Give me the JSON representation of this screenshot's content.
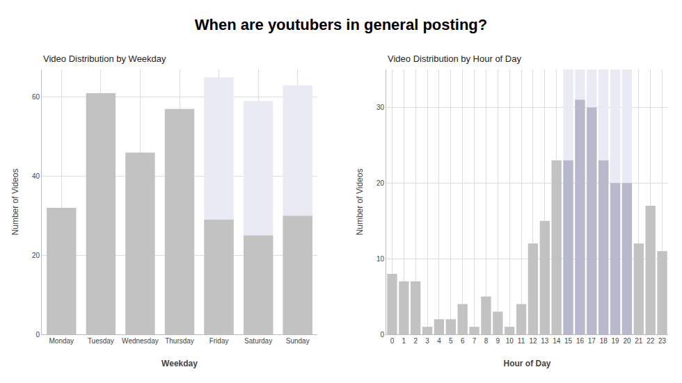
{
  "title": "When are youtubers in general posting?",
  "chart_data": [
    {
      "type": "bar",
      "title": "Video Distribution by Weekday",
      "xlabel": "Weekday",
      "ylabel": "Number of Videos",
      "categories": [
        "Monday",
        "Tuesday",
        "Wednesday",
        "Thursday",
        "Friday",
        "Saturday",
        "Sunday"
      ],
      "series": [
        {
          "color": "#eaeaf4",
          "values": [
            null,
            null,
            null,
            null,
            65,
            59,
            63
          ]
        },
        {
          "color": "#c2c2c2",
          "values": [
            32,
            61,
            46,
            57,
            29,
            25,
            30
          ]
        }
      ],
      "ylim": [
        0,
        67
      ],
      "yticks": [
        0,
        20,
        40,
        60
      ],
      "grid": true
    },
    {
      "type": "bar",
      "title": "Video Distribution by Hour of Day",
      "xlabel": "Hour of Day",
      "ylabel": "Number of Videos",
      "x": [
        0,
        1,
        2,
        3,
        4,
        5,
        6,
        7,
        8,
        9,
        10,
        11,
        12,
        13,
        14,
        15,
        16,
        17,
        18,
        19,
        20,
        21,
        22,
        23
      ],
      "series": [
        {
          "color": "#eaeaf4",
          "values": [
            null,
            null,
            null,
            null,
            null,
            null,
            null,
            null,
            null,
            null,
            null,
            null,
            null,
            null,
            null,
            35,
            35,
            35,
            35,
            35,
            35,
            null,
            null,
            null
          ]
        },
        {
          "colors": [
            "#c2c2c2",
            "#c2c2c2",
            "#c2c2c2",
            "#c2c2c2",
            "#c2c2c2",
            "#c2c2c2",
            "#c2c2c2",
            "#c2c2c2",
            "#c2c2c2",
            "#c2c2c2",
            "#c2c2c2",
            "#c2c2c2",
            "#c2c2c2",
            "#c2c2c2",
            "#c2c2c2",
            "#b8b8cc",
            "#b8b8cc",
            "#b8b8cc",
            "#b8b8cc",
            "#b8b8cc",
            "#b8b8cc",
            "#c2c2c2",
            "#c2c2c2",
            "#c2c2c2"
          ],
          "values": [
            8,
            7,
            7,
            1,
            2,
            2,
            4,
            1,
            5,
            3,
            1,
            4,
            12,
            15,
            23,
            23,
            31,
            30,
            23,
            20,
            20,
            12,
            17,
            11
          ]
        }
      ],
      "xlim": [
        -0.5,
        23.5
      ],
      "xticks": [
        0,
        1,
        2,
        3,
        4,
        5,
        6,
        7,
        8,
        9,
        10,
        11,
        12,
        13,
        14,
        15,
        16,
        17,
        18,
        19,
        20,
        21,
        22,
        23
      ],
      "ylim": [
        0,
        35
      ],
      "yticks": [
        0,
        10,
        20,
        30
      ],
      "grid": true
    }
  ]
}
